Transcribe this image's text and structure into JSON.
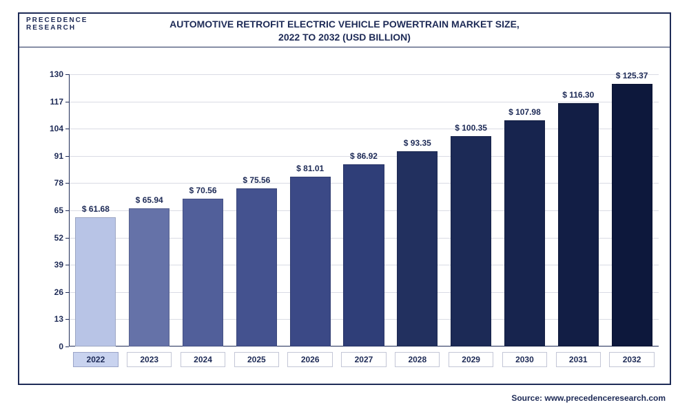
{
  "logo_line1": "PRECEDENCE",
  "logo_line2": "RESEARCH",
  "title_line1": "AUTOMOTIVE RETROFIT ELECTRIC VEHICLE POWERTRAIN MARKET SIZE,",
  "title_line2": "2022 TO 2032 (USD BILLION)",
  "source": "Source: www.precedenceresearch.com",
  "chart": {
    "type": "bar",
    "ylim": [
      0,
      130
    ],
    "yticks": [
      0,
      13,
      26,
      39,
      52,
      65,
      78,
      91,
      104,
      117,
      130
    ],
    "background_color": "#ffffff",
    "grid_color": "#d9dbe4",
    "axis_color": "#1d2a56",
    "text_color": "#1d2a56",
    "title_fontsize": 14,
    "label_fontsize": 12,
    "bar_width_ratio": 0.76,
    "categories": [
      "2022",
      "2023",
      "2024",
      "2025",
      "2026",
      "2027",
      "2028",
      "2029",
      "2030",
      "2031",
      "2032"
    ],
    "values": [
      61.68,
      65.94,
      70.56,
      75.56,
      81.01,
      86.92,
      93.35,
      100.35,
      107.98,
      116.3,
      125.37
    ],
    "value_labels": [
      "$ 61.68",
      "$ 65.94",
      "$ 70.56",
      "$ 75.56",
      "$ 81.01",
      "$ 86.92",
      "$ 93.35",
      "$ 100.35",
      "$ 107.98",
      "$ 116.30",
      "$ 125.37"
    ],
    "bar_colors": [
      "#b8c4e6",
      "#6572a8",
      "#515f9a",
      "#44528f",
      "#3b4986",
      "#2f3e78",
      "#22305f",
      "#1c2a56",
      "#17244e",
      "#121e45",
      "#0d183c"
    ],
    "highlight_index": 0
  }
}
